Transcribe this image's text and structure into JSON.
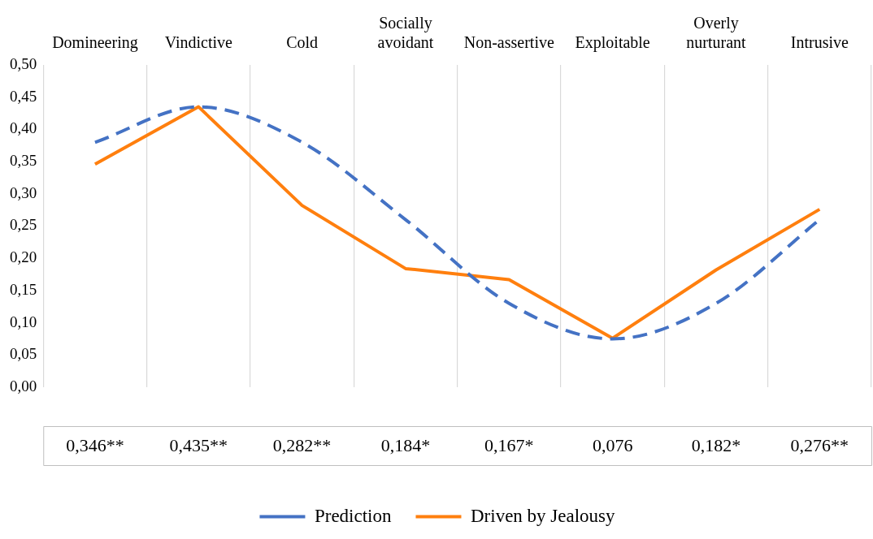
{
  "chart_data": {
    "type": "line",
    "categories": [
      "Domineering",
      "Vindictive",
      "Cold",
      "Socially avoidant",
      "Non-assertive",
      "Exploitable",
      "Overly nurturant",
      "Intrusive"
    ],
    "series": [
      {
        "name": "Prediction",
        "color": "#4472c4",
        "line_style": "dashed",
        "values": [
          0.38,
          0.435,
          0.38,
          0.26,
          0.13,
          0.075,
          0.13,
          0.26
        ]
      },
      {
        "name": "Driven by Jealousy",
        "color": "#ff7f0e",
        "line_style": "solid",
        "values": [
          0.346,
          0.435,
          0.282,
          0.184,
          0.167,
          0.076,
          0.182,
          0.276
        ],
        "value_labels": [
          "0,346**",
          "0,435**",
          "0,282**",
          "0,184*",
          "0,167*",
          "0,076",
          "0,182*",
          "0,276**"
        ]
      }
    ],
    "ylim": [
      0,
      0.5
    ],
    "yticks": [
      {
        "value": 0,
        "label": "0,00"
      },
      {
        "value": 0.05,
        "label": "0,05"
      },
      {
        "value": 0.1,
        "label": "0,10"
      },
      {
        "value": 0.15,
        "label": "0,15"
      },
      {
        "value": 0.2,
        "label": "0,20"
      },
      {
        "value": 0.25,
        "label": "0,25"
      },
      {
        "value": 0.3,
        "label": "0,30"
      },
      {
        "value": 0.35,
        "label": "0,35"
      },
      {
        "value": 0.4,
        "label": "0,40"
      },
      {
        "value": 0.45,
        "label": "0,45"
      },
      {
        "value": 0.5,
        "label": "0,50"
      }
    ],
    "grid": "x",
    "legend": "bottom",
    "marker": "none"
  }
}
